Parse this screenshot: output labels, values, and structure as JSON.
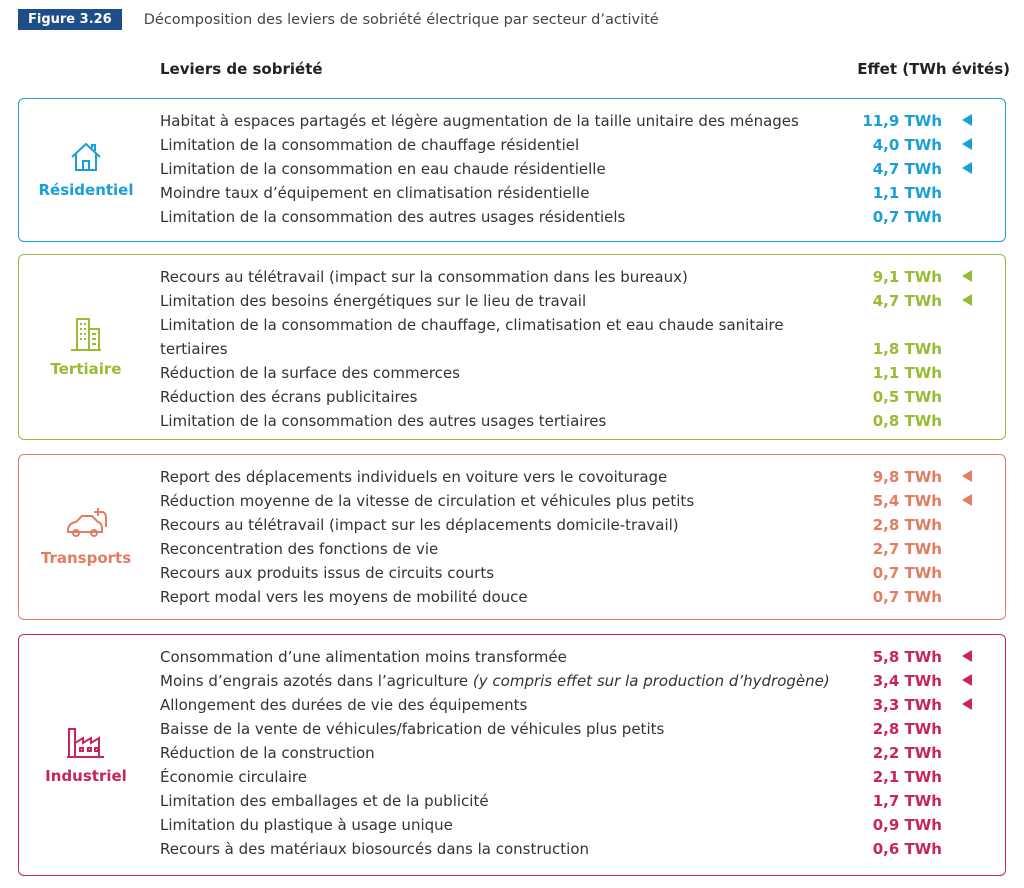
{
  "header": {
    "figure": "Figure 3.26",
    "title": "Décomposition des leviers de sobriété électrique par secteur d’activité"
  },
  "columns": {
    "lever": "Leviers de sobriété",
    "effect": "Effet (TWh évités)"
  },
  "sections": [
    {
      "name": "Résidentiel",
      "color": "#1a9fd6",
      "rows": [
        {
          "lever": "Habitat à espaces partagés et légère augmentation de la taille unitaire des ménages",
          "effect": "11,9 TWh",
          "marked": true
        },
        {
          "lever": "Limitation de la consommation de chauffage résidentiel",
          "effect": "4,0 TWh",
          "marked": true
        },
        {
          "lever": "Limitation de la consommation en eau chaude résidentielle",
          "effect": "4,7 TWh",
          "marked": true
        },
        {
          "lever": "Moindre taux d’équipement en climatisation résidentielle",
          "effect": "1,1 TWh",
          "marked": false
        },
        {
          "lever": "Limitation de la consommation des autres usages résidentiels",
          "effect": "0,7 TWh",
          "marked": false
        }
      ]
    },
    {
      "name": "Tertiaire",
      "color": "#99bb33",
      "rows": [
        {
          "lever": "Recours au télétravail (impact sur la consommation dans les bureaux)",
          "effect": "9,1 TWh",
          "marked": true
        },
        {
          "lever": "Limitation des besoins énergétiques sur le lieu de travail",
          "effect": "4,7 TWh",
          "marked": true
        },
        {
          "lever": "Limitation de la consommation de chauffage, climatisation et eau chaude sanitaire tertiaires",
          "effect": "1,8 TWh",
          "marked": false
        },
        {
          "lever": "Réduction de la surface des commerces",
          "effect": "1,1 TWh",
          "marked": false
        },
        {
          "lever": "Réduction des écrans publicitaires",
          "effect": "0,5 TWh",
          "marked": false
        },
        {
          "lever": "Limitation de la consommation des autres usages tertiaires",
          "effect": "0,8 TWh",
          "marked": false
        }
      ]
    },
    {
      "name": "Transports",
      "color": "#e27d62",
      "rows": [
        {
          "lever": "Report des déplacements individuels en voiture vers le covoiturage",
          "effect": "9,8 TWh",
          "marked": true
        },
        {
          "lever": "Réduction moyenne de la vitesse de circulation et véhicules plus petits",
          "effect": "5,4 TWh",
          "marked": true
        },
        {
          "lever": "Recours au télétravail (impact sur les déplacements domicile-travail)",
          "effect": "2,8 TWh",
          "marked": false
        },
        {
          "lever": "Reconcentration des fonctions de vie",
          "effect": "2,7 TWh",
          "marked": false
        },
        {
          "lever": "Recours aux produits issus de circuits courts",
          "effect": "0,7 TWh",
          "marked": false
        },
        {
          "lever": "Report modal vers les moyens de mobilité douce",
          "effect": "0,7 TWh",
          "marked": false
        }
      ]
    },
    {
      "name": "Industriel",
      "color": "#c8245e",
      "rows": [
        {
          "lever": "Consommation d’une alimentation moins transformée",
          "effect": "5,8 TWh",
          "marked": true
        },
        {
          "lever": "Moins d’engrais azotés dans l’agriculture",
          "note": "(y compris effet sur la production d’hydrogène)",
          "effect": "3,4 TWh",
          "marked": true
        },
        {
          "lever": "Allongement des durées de vie des équipements",
          "effect": "3,3 TWh",
          "marked": true
        },
        {
          "lever": "Baisse de la vente de véhicules/fabrication de véhicules plus petits",
          "effect": "2,8 TWh",
          "marked": false
        },
        {
          "lever": "Réduction de la construction",
          "effect": "2,2 TWh",
          "marked": false
        },
        {
          "lever": "Économie circulaire",
          "effect": "2,1 TWh",
          "marked": false
        },
        {
          "lever": "Limitation des emballages et de la publicité",
          "effect": "1,7 TWh",
          "marked": false
        },
        {
          "lever": "Limitation du plastique à usage unique",
          "effect": "0,9 TWh",
          "marked": false
        },
        {
          "lever": "Recours à des matériaux biosourcés dans la construction",
          "effect": "0,6 TWh",
          "marked": false
        }
      ]
    }
  ]
}
